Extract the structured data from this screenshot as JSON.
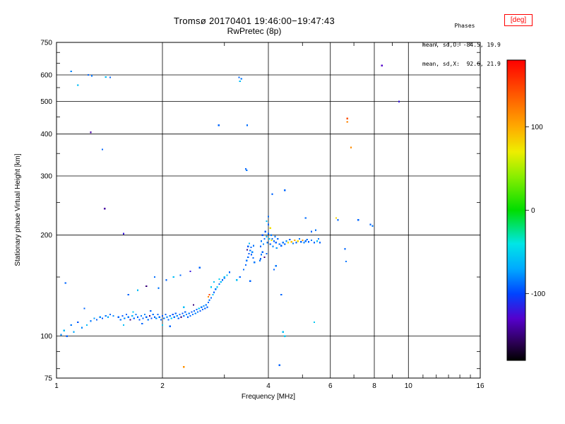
{
  "chart_data": {
    "type": "scatter",
    "title": "Tromsø 20170401 19:46:00−19:47:43",
    "subtitle": "RwPretec (8p)",
    "xlabel": "Frequency [MHz]",
    "ylabel": "Stationary phase Virtual Height [km]",
    "xscale": "log",
    "yscale": "log",
    "xlim": [
      1,
      16
    ],
    "ylim": [
      75,
      750
    ],
    "xticks": [
      1,
      2,
      4,
      6,
      8,
      10,
      16
    ],
    "xgridlines": [
      2,
      4,
      6,
      8,
      10
    ],
    "xminorticks": [
      3,
      5,
      7,
      9,
      11,
      12,
      13,
      14,
      15
    ],
    "yticks": [
      75,
      100,
      200,
      300,
      400,
      500,
      600,
      750
    ],
    "ygridlines": [
      100,
      200,
      300,
      400,
      500,
      600
    ],
    "yminorticks": [
      80,
      90,
      150,
      250,
      350,
      450,
      550,
      650,
      700
    ],
    "grid": true,
    "legend": false,
    "colorbar": {
      "label": "[deg]",
      "min": -180,
      "max": 180,
      "ticks": [
        100,
        0,
        -100
      ],
      "stops": [
        [
          -180,
          "#000000"
        ],
        [
          -160,
          "#2a0050"
        ],
        [
          -130,
          "#5500cc"
        ],
        [
          -100,
          "#0044ff"
        ],
        [
          -70,
          "#00aaff"
        ],
        [
          -40,
          "#00e6e6"
        ],
        [
          0,
          "#00dd00"
        ],
        [
          40,
          "#88ee00"
        ],
        [
          70,
          "#eeee00"
        ],
        [
          100,
          "#ffaa00"
        ],
        [
          140,
          "#ff5500"
        ],
        [
          180,
          "#ff0000"
        ]
      ]
    },
    "points_format": [
      "frequency_mhz",
      "virtual_height_km",
      "phase_deg"
    ],
    "points": [
      [
        1.03,
        101,
        -80
      ],
      [
        1.05,
        104,
        -62
      ],
      [
        1.07,
        100,
        -92
      ],
      [
        1.06,
        144,
        -90
      ],
      [
        1.1,
        108,
        -85
      ],
      [
        1.12,
        103,
        -70
      ],
      [
        1.15,
        110,
        -95
      ],
      [
        1.18,
        106,
        -80
      ],
      [
        1.2,
        121,
        -90
      ],
      [
        1.22,
        108,
        -62
      ],
      [
        1.25,
        111,
        -85
      ],
      [
        1.28,
        113,
        -75
      ],
      [
        1.3,
        112,
        -92
      ],
      [
        1.33,
        114,
        -80
      ],
      [
        1.35,
        113,
        -95
      ],
      [
        1.38,
        115,
        -85
      ],
      [
        1.4,
        114,
        -70
      ],
      [
        1.42,
        116,
        -90
      ],
      [
        1.45,
        115,
        -80
      ],
      [
        1.5,
        114,
        -90
      ],
      [
        1.52,
        112,
        -85
      ],
      [
        1.54,
        115,
        -95
      ],
      [
        1.56,
        113,
        -80
      ],
      [
        1.58,
        116,
        -90
      ],
      [
        1.6,
        114,
        -85
      ],
      [
        1.62,
        112,
        -150
      ],
      [
        1.64,
        115,
        -70
      ],
      [
        1.66,
        113,
        -90
      ],
      [
        1.68,
        116,
        -85
      ],
      [
        1.7,
        114,
        -90
      ],
      [
        1.72,
        112,
        -95
      ],
      [
        1.74,
        115,
        -85
      ],
      [
        1.76,
        113,
        -90
      ],
      [
        1.78,
        116,
        -80
      ],
      [
        1.8,
        114,
        -90
      ],
      [
        1.82,
        112,
        -85
      ],
      [
        1.84,
        115,
        -150
      ],
      [
        1.86,
        113,
        -95
      ],
      [
        1.88,
        116,
        -85
      ],
      [
        1.9,
        114,
        -90
      ],
      [
        1.92,
        113,
        -80
      ],
      [
        1.94,
        116,
        -90
      ],
      [
        1.96,
        114,
        -85
      ],
      [
        1.98,
        112,
        -90
      ],
      [
        2.0,
        115,
        -95
      ],
      [
        2.02,
        113,
        -85
      ],
      [
        2.04,
        116,
        -90
      ],
      [
        2.06,
        114,
        -80
      ],
      [
        2.08,
        112,
        -90
      ],
      [
        2.1,
        115,
        -85
      ],
      [
        2.12,
        113,
        -55
      ],
      [
        2.14,
        116,
        -95
      ],
      [
        2.16,
        114,
        -85
      ],
      [
        2.18,
        117,
        -90
      ],
      [
        2.2,
        115,
        -80
      ],
      [
        2.22,
        113,
        -90
      ],
      [
        2.24,
        116,
        -85
      ],
      [
        2.26,
        114,
        -150
      ],
      [
        2.28,
        117,
        -95
      ],
      [
        2.3,
        115,
        -85
      ],
      [
        2.32,
        118,
        -90
      ],
      [
        2.34,
        116,
        -80
      ],
      [
        2.36,
        114,
        -90
      ],
      [
        2.38,
        117,
        -85
      ],
      [
        2.4,
        115,
        -90
      ],
      [
        2.42,
        118,
        -95
      ],
      [
        2.44,
        116,
        -85
      ],
      [
        2.46,
        119,
        -90
      ],
      [
        2.48,
        117,
        -80
      ],
      [
        2.5,
        120,
        -90
      ],
      [
        2.52,
        118,
        -85
      ],
      [
        2.54,
        121,
        -55
      ],
      [
        2.56,
        119,
        -95
      ],
      [
        2.58,
        122,
        -85
      ],
      [
        2.6,
        120,
        -90
      ],
      [
        2.62,
        123,
        -80
      ],
      [
        2.64,
        121,
        -90
      ],
      [
        2.66,
        124,
        -85
      ],
      [
        2.68,
        122,
        -90
      ],
      [
        1.55,
        108,
        -60
      ],
      [
        1.75,
        109,
        -90
      ],
      [
        2.0,
        108,
        -55
      ],
      [
        2.1,
        107,
        -90
      ],
      [
        1.65,
        118,
        -55
      ],
      [
        1.85,
        119,
        -90
      ],
      [
        2.3,
        122,
        -60
      ],
      [
        2.45,
        124,
        -150
      ],
      [
        1.6,
        133,
        -90
      ],
      [
        1.7,
        137,
        -60
      ],
      [
        1.8,
        141,
        -150
      ],
      [
        1.95,
        139,
        -85
      ],
      [
        2.05,
        147,
        -90
      ],
      [
        2.15,
        150,
        -60
      ],
      [
        2.25,
        152,
        -90
      ],
      [
        2.4,
        156,
        -120
      ],
      [
        2.55,
        160,
        -90
      ],
      [
        1.9,
        150,
        -88
      ],
      [
        2.7,
        126,
        -90
      ],
      [
        2.72,
        128,
        -85
      ],
      [
        2.7,
        131,
        118
      ],
      [
        2.72,
        133,
        150
      ],
      [
        2.75,
        130,
        -90
      ],
      [
        2.78,
        133,
        -60
      ],
      [
        2.8,
        135,
        -90
      ],
      [
        2.83,
        138,
        -85
      ],
      [
        2.86,
        140,
        -55
      ],
      [
        2.9,
        143,
        -90
      ],
      [
        2.93,
        145,
        -60
      ],
      [
        2.96,
        147,
        -90
      ],
      [
        3.0,
        149,
        -85
      ],
      [
        3.05,
        152,
        -58
      ],
      [
        3.1,
        155,
        -90
      ],
      [
        2.75,
        140,
        -55
      ],
      [
        2.8,
        145,
        -60
      ],
      [
        2.9,
        148,
        -52
      ],
      [
        3.0,
        150,
        -60
      ],
      [
        3.32,
        150,
        -90
      ],
      [
        3.25,
        147,
        -60
      ],
      [
        3.45,
        163,
        -90
      ],
      [
        3.47,
        168,
        -85
      ],
      [
        3.5,
        172,
        -90
      ],
      [
        3.52,
        176,
        -95
      ],
      [
        3.55,
        180,
        -85
      ],
      [
        3.57,
        184,
        -90
      ],
      [
        3.6,
        178,
        -80
      ],
      [
        3.62,
        171,
        -90
      ],
      [
        3.65,
        166,
        -85
      ],
      [
        3.5,
        185,
        -92
      ],
      [
        3.53,
        189,
        -60
      ],
      [
        3.58,
        175,
        -90
      ],
      [
        3.4,
        158,
        -88
      ],
      [
        3.55,
        146,
        -90
      ],
      [
        3.48,
        181,
        -150
      ],
      [
        3.63,
        186,
        -85
      ],
      [
        3.8,
        170,
        -90
      ],
      [
        3.82,
        175,
        -85
      ],
      [
        3.85,
        178,
        -90
      ],
      [
        3.78,
        168,
        -85
      ],
      [
        3.9,
        172,
        -150
      ],
      [
        3.95,
        176,
        -90
      ],
      [
        3.8,
        185,
        -90
      ],
      [
        3.82,
        192,
        -85
      ],
      [
        3.85,
        200,
        -95
      ],
      [
        3.87,
        188,
        -80
      ],
      [
        3.9,
        195,
        -90
      ],
      [
        3.92,
        205,
        -92
      ],
      [
        3.95,
        198,
        -70
      ],
      [
        3.97,
        190,
        -85
      ],
      [
        4.0,
        202,
        -90
      ],
      [
        4.02,
        195,
        -60
      ],
      [
        4.05,
        188,
        -90
      ],
      [
        4.07,
        200,
        -85
      ],
      [
        4.1,
        195,
        -90
      ],
      [
        4.12,
        185,
        -80
      ],
      [
        4.15,
        192,
        -90
      ],
      [
        4.18,
        198,
        -85
      ],
      [
        4.2,
        190,
        -90
      ],
      [
        4.22,
        183,
        -75
      ],
      [
        4.25,
        195,
        -90
      ],
      [
        4.3,
        188,
        -85
      ],
      [
        4.0,
        215,
        -90
      ],
      [
        3.95,
        220,
        -60
      ],
      [
        4.0,
        227,
        -88
      ],
      [
        4.05,
        210,
        76
      ],
      [
        4.08,
        193,
        75
      ],
      [
        4.35,
        186,
        -90
      ],
      [
        4.4,
        190,
        -85
      ],
      [
        4.45,
        188,
        -90
      ],
      [
        4.5,
        192,
        -80
      ],
      [
        4.55,
        190,
        78
      ],
      [
        4.6,
        194,
        -90
      ],
      [
        4.65,
        191,
        90
      ],
      [
        4.7,
        189,
        -85
      ],
      [
        4.75,
        193,
        100
      ],
      [
        4.8,
        190,
        -90
      ],
      [
        4.85,
        192,
        80
      ],
      [
        4.9,
        195,
        -85
      ],
      [
        4.95,
        191,
        -90
      ],
      [
        5.0,
        193,
        110
      ],
      [
        5.05,
        190,
        -80
      ],
      [
        5.1,
        192,
        -90
      ],
      [
        5.15,
        194,
        -85
      ],
      [
        5.2,
        191,
        -90
      ],
      [
        5.3,
        193,
        -85
      ],
      [
        5.4,
        190,
        -90
      ],
      [
        5.5,
        192,
        -60
      ],
      [
        5.55,
        195,
        -85
      ],
      [
        5.6,
        190,
        -90
      ],
      [
        5.3,
        205,
        -90
      ],
      [
        5.45,
        207,
        -85
      ],
      [
        4.35,
        133,
        -90
      ],
      [
        4.15,
        158,
        -90
      ],
      [
        4.2,
        162,
        -85
      ],
      [
        4.4,
        103,
        -60
      ],
      [
        4.45,
        100,
        -55
      ],
      [
        4.3,
        82,
        -90
      ],
      [
        5.4,
        110,
        -55
      ],
      [
        2.3,
        81,
        112
      ],
      [
        1.1,
        615,
        -80
      ],
      [
        1.15,
        560,
        -60
      ],
      [
        1.23,
        600,
        -90
      ],
      [
        1.26,
        597,
        -85
      ],
      [
        1.38,
        592,
        -60
      ],
      [
        1.42,
        590,
        -90
      ],
      [
        3.3,
        590,
        -90
      ],
      [
        3.35,
        585,
        -85
      ],
      [
        3.32,
        575,
        -60
      ],
      [
        8.4,
        640,
        -130
      ],
      [
        9.4,
        500,
        -120
      ],
      [
        1.25,
        405,
        -140
      ],
      [
        1.35,
        360,
        -90
      ],
      [
        1.37,
        240,
        -140
      ],
      [
        2.89,
        425,
        -90
      ],
      [
        3.48,
        425,
        -88
      ],
      [
        3.45,
        315,
        -90
      ],
      [
        3.47,
        312,
        -85
      ],
      [
        4.45,
        272,
        -90
      ],
      [
        4.1,
        265,
        -90
      ],
      [
        1.55,
        202,
        -120
      ],
      [
        6.7,
        435,
        118
      ],
      [
        6.7,
        445,
        142
      ],
      [
        6.87,
        365,
        112
      ],
      [
        6.23,
        225,
        82
      ],
      [
        6.3,
        222,
        -90
      ],
      [
        6.6,
        182,
        -90
      ],
      [
        6.65,
        167,
        -85
      ],
      [
        7.8,
        215,
        -90
      ],
      [
        7.9,
        213,
        -85
      ],
      [
        5.1,
        225,
        -88
      ],
      [
        7.2,
        222,
        -90
      ]
    ]
  },
  "annotation": {
    "heading": "Phases",
    "line_o": "mean, sd,O: -84.5, 19.9",
    "line_x": "mean, sd,X:  92.6, 21.9"
  },
  "colors": {
    "background": "#ffffff",
    "frame": "#000000",
    "deg_label_box": "#ff0000"
  }
}
